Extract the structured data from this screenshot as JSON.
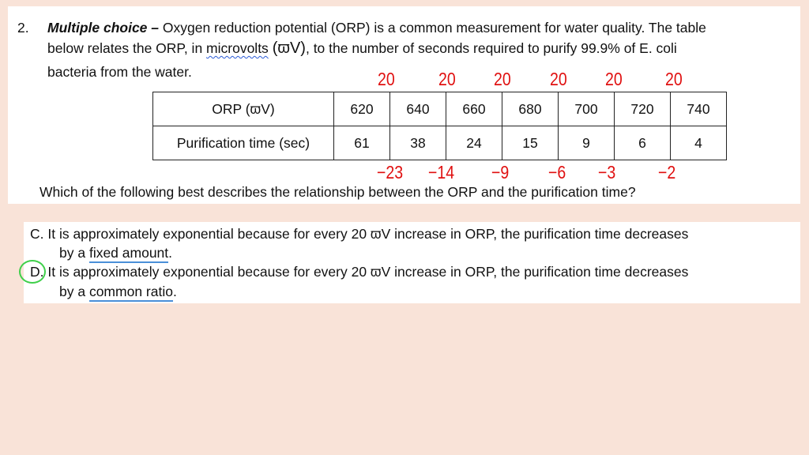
{
  "question": {
    "number": "2.",
    "title": "Multiple choice –",
    "intro_part1": " Oxygen reduction potential (ORP) is a common measurement for water quality.  The table",
    "line2_a": "below relates the ORP, in ",
    "line2_unit_word": "microvolts",
    "line2_symbol": "(ϖV)",
    "line2_b": ", to the number of seconds required to purify 99.9% of E. coli",
    "line3": "bacteria from the water.",
    "prompt": "Which of the following best describes the relationship between the ORP and the purification time?"
  },
  "table": {
    "row1_header": "ORP (ϖV)",
    "row1_values": [
      "620",
      "640",
      "660",
      "680",
      "700",
      "720",
      "740"
    ],
    "row2_header": "Purification time (sec)",
    "row2_values": [
      "61",
      "38",
      "24",
      "15",
      "9",
      "6",
      "4"
    ]
  },
  "annotations": {
    "top_differences": [
      "20",
      "20",
      "20",
      "20",
      "20",
      "20"
    ],
    "bottom_differences": [
      "−23",
      "−14",
      "−9",
      "−6",
      "−3",
      "−2"
    ]
  },
  "options": {
    "c_letter": "C.",
    "c_text": "  It is approximately exponential because for every 20 ϖV increase in ORP, the purification time decreases",
    "c_line2_a": "by a ",
    "c_line2_ul": "fixed amount",
    "c_line2_b": ".",
    "d_letter": "D.",
    "d_text": " It is approximately exponential because for every 20 ϖV increase in ORP, the purification time decreases",
    "d_line2_a": "by a ",
    "d_line2_ul": "common ratio",
    "d_line2_b": "."
  },
  "colors": {
    "background": "#f9e3d8",
    "annotation_red": "#e01010",
    "underline_blue": "#4a8fd8",
    "circle_green": "#3fcf4a"
  }
}
